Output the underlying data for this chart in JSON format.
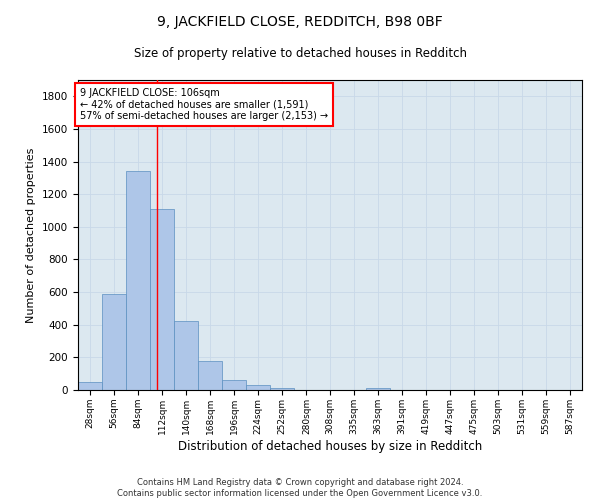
{
  "title1": "9, JACKFIELD CLOSE, REDDITCH, B98 0BF",
  "title2": "Size of property relative to detached houses in Redditch",
  "xlabel": "Distribution of detached houses by size in Redditch",
  "ylabel": "Number of detached properties",
  "categories": [
    "28sqm",
    "56sqm",
    "84sqm",
    "112sqm",
    "140sqm",
    "168sqm",
    "196sqm",
    "224sqm",
    "252sqm",
    "280sqm",
    "308sqm",
    "335sqm",
    "363sqm",
    "391sqm",
    "419sqm",
    "447sqm",
    "475sqm",
    "503sqm",
    "531sqm",
    "559sqm",
    "587sqm"
  ],
  "bar_edges": [
    14,
    42,
    70,
    98,
    126,
    154,
    182,
    210,
    238,
    266,
    294,
    321,
    349,
    377,
    405,
    433,
    461,
    489,
    517,
    545,
    573,
    601
  ],
  "values": [
    50,
    590,
    1340,
    1110,
    420,
    175,
    60,
    30,
    10,
    0,
    0,
    0,
    10,
    0,
    0,
    0,
    0,
    0,
    0,
    0,
    0
  ],
  "bar_color": "#aec6e8",
  "bar_edge_color": "#5a8fc0",
  "grid_color": "#c8d8e8",
  "bg_color": "#dce8f0",
  "vline_x": 106,
  "vline_color": "red",
  "annotation_lines": [
    "9 JACKFIELD CLOSE: 106sqm",
    "← 42% of detached houses are smaller (1,591)",
    "57% of semi-detached houses are larger (2,153) →"
  ],
  "annotation_box_color": "white",
  "annotation_box_edge": "red",
  "ylim": [
    0,
    1900
  ],
  "yticks": [
    0,
    200,
    400,
    600,
    800,
    1000,
    1200,
    1400,
    1600,
    1800
  ],
  "footer1": "Contains HM Land Registry data © Crown copyright and database right 2024.",
  "footer2": "Contains public sector information licensed under the Open Government Licence v3.0."
}
